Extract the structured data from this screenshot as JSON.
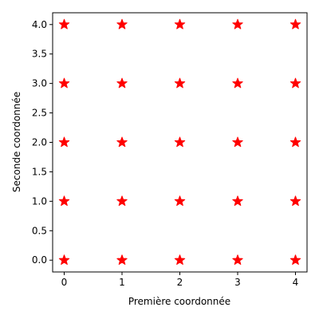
{
  "chart_data": {
    "type": "scatter",
    "title": "",
    "xlabel": "Première coordonnée",
    "ylabel": "Seconde coordonnée",
    "xlim": [
      -0.2,
      4.2
    ],
    "ylim": [
      -0.2,
      4.2
    ],
    "xticks": [
      0,
      1,
      2,
      3,
      4
    ],
    "xtick_labels": [
      "0",
      "1",
      "2",
      "3",
      "4"
    ],
    "yticks": [
      0.0,
      0.5,
      1.0,
      1.5,
      2.0,
      2.5,
      3.0,
      3.5,
      4.0
    ],
    "ytick_labels": [
      "0.0",
      "0.5",
      "1.0",
      "1.5",
      "2.0",
      "2.5",
      "3.0",
      "3.5",
      "4.0"
    ],
    "grid": false,
    "marker": "star",
    "marker_color": "#ff0000",
    "series": [
      {
        "points": [
          [
            0,
            0
          ],
          [
            1,
            0
          ],
          [
            2,
            0
          ],
          [
            3,
            0
          ],
          [
            4,
            0
          ],
          [
            0,
            1
          ],
          [
            1,
            1
          ],
          [
            2,
            1
          ],
          [
            3,
            1
          ],
          [
            4,
            1
          ],
          [
            0,
            2
          ],
          [
            1,
            2
          ],
          [
            2,
            2
          ],
          [
            3,
            2
          ],
          [
            4,
            2
          ],
          [
            0,
            3
          ],
          [
            1,
            3
          ],
          [
            2,
            3
          ],
          [
            3,
            3
          ],
          [
            4,
            3
          ],
          [
            0,
            4
          ],
          [
            1,
            4
          ],
          [
            2,
            4
          ],
          [
            3,
            4
          ],
          [
            4,
            4
          ]
        ]
      }
    ]
  }
}
